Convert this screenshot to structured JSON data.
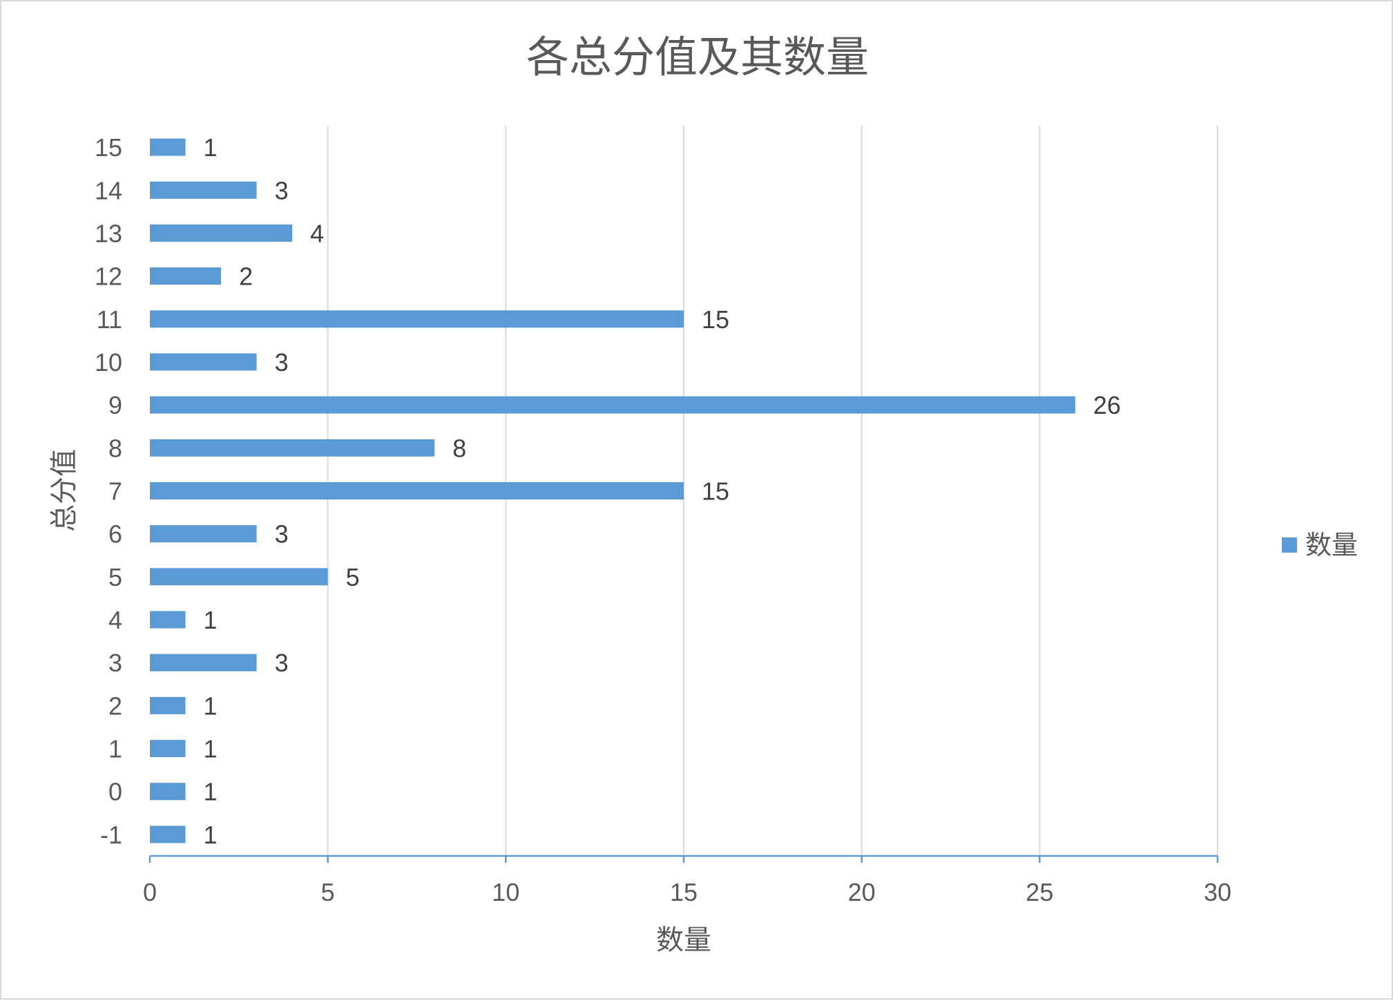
{
  "chart_data": {
    "type": "bar",
    "orientation": "horizontal",
    "title": "各总分值及其数量",
    "xlabel": "数量",
    "ylabel": "总分值",
    "xlim": [
      0,
      30
    ],
    "x_ticks": [
      "0",
      "5",
      "10",
      "15",
      "20",
      "25",
      "30"
    ],
    "categories": [
      "-1",
      "0",
      "1",
      "2",
      "3",
      "4",
      "5",
      "6",
      "7",
      "8",
      "9",
      "10",
      "11",
      "12",
      "13",
      "14",
      "15"
    ],
    "series": [
      {
        "name": "数量",
        "color": "#5b9bd5",
        "values": [
          1,
          1,
          1,
          1,
          3,
          1,
          5,
          3,
          15,
          8,
          26,
          3,
          15,
          2,
          4,
          3,
          1
        ]
      }
    ],
    "data_labels": true,
    "grid": "vertical-major",
    "legend_position": "right"
  }
}
